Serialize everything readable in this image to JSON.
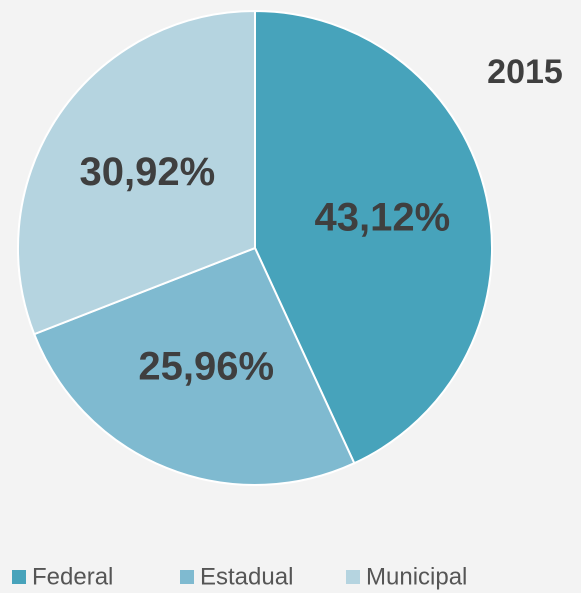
{
  "chart_data": {
    "type": "pie",
    "title": "2015",
    "categories": [
      "Federal",
      "Estadual",
      "Municipal"
    ],
    "values": [
      43.12,
      25.96,
      30.92
    ],
    "value_labels": [
      "43,12%",
      "25,96%",
      "30,92%"
    ],
    "colors": [
      "#47a3bb",
      "#7fbad0",
      "#b5d4e0"
    ],
    "legend": "bottom"
  }
}
